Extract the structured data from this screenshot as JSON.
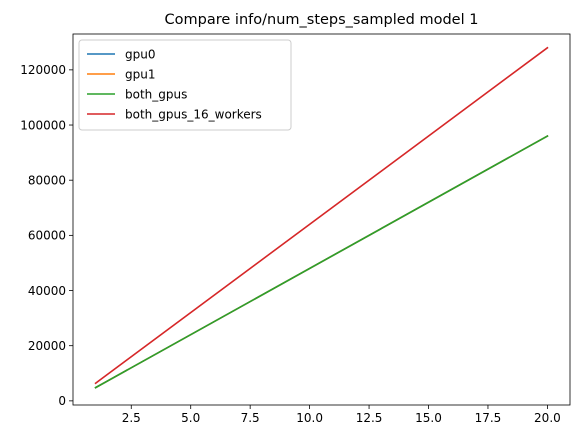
{
  "chart_data": {
    "type": "line",
    "title": "Compare info/num_steps_sampled model 1",
    "xlabel": "",
    "ylabel": "",
    "xlim": [
      0.05,
      20.95
    ],
    "ylim": [
      -1500,
      133000
    ],
    "xticks": [
      2.5,
      5.0,
      7.5,
      10.0,
      12.5,
      15.0,
      17.5,
      20.0
    ],
    "xtick_labels": [
      "2.5",
      "5.0",
      "7.5",
      "10.0",
      "12.5",
      "15.0",
      "17.5",
      "20.0"
    ],
    "yticks": [
      0,
      20000,
      40000,
      60000,
      80000,
      100000,
      120000
    ],
    "ytick_labels": [
      "0",
      "20000",
      "40000",
      "60000",
      "80000",
      "100000",
      "120000"
    ],
    "grid": false,
    "legend_position": "top-left",
    "x": [
      1,
      20
    ],
    "series": [
      {
        "name": "gpu0",
        "color": "#1f77b4",
        "values": [
          4800,
          96000
        ]
      },
      {
        "name": "gpu1",
        "color": "#ff7f0e",
        "values": [
          4800,
          96000
        ]
      },
      {
        "name": "both_gpus",
        "color": "#2ca02c",
        "values": [
          4800,
          96000
        ]
      },
      {
        "name": "both_gpus_16_workers",
        "color": "#d62728",
        "values": [
          6400,
          128000
        ]
      }
    ]
  }
}
